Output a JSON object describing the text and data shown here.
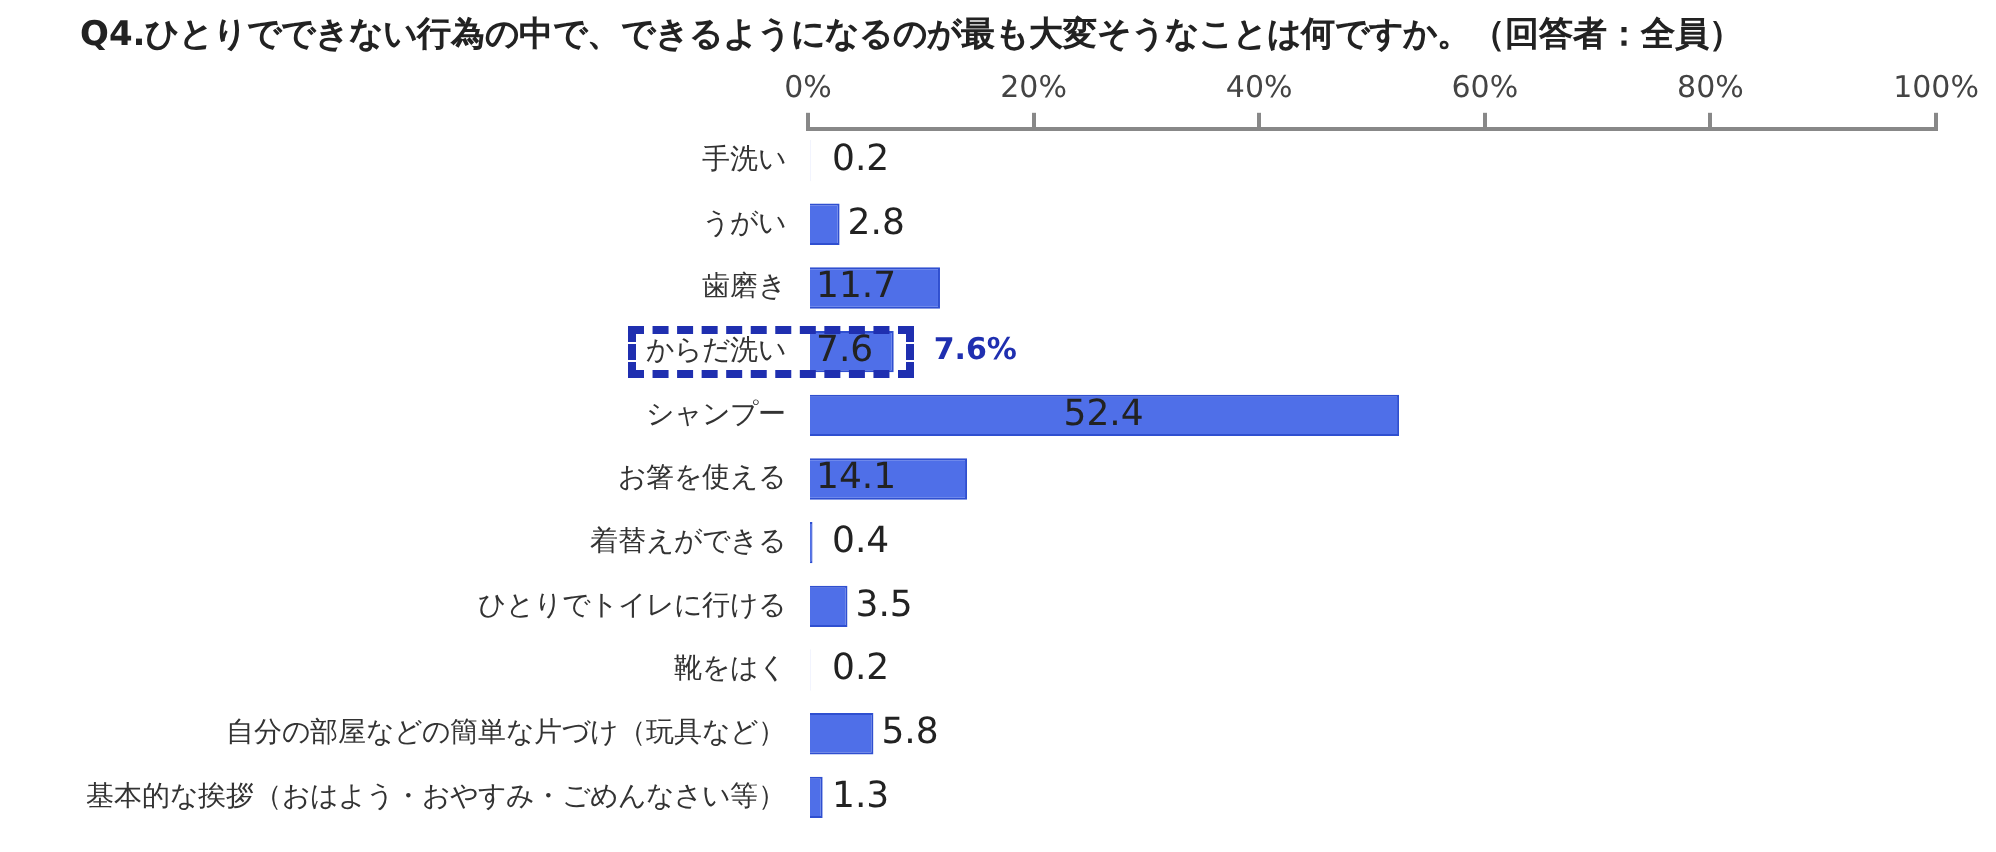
{
  "chart_data": {
    "type": "bar",
    "orientation": "horizontal",
    "title": "Q4.ひとりでできない行為の中で、できるようになるのが最も大変そうなことは何ですか。（回答者：全員）",
    "categories": [
      "手洗い",
      "うがい",
      "歯磨き",
      "からだ洗い",
      "シャンプー",
      "お箸を使える",
      "着替えができる",
      "ひとりでトイレに行ける",
      "靴をはく",
      "自分の部屋などの簡単な片づけ（玩具など）",
      "基本的な挨拶（おはよう・おやすみ・ごめんなさい等）"
    ],
    "values": [
      0.2,
      2.8,
      11.7,
      7.6,
      52.4,
      14.1,
      0.4,
      3.5,
      0.2,
      5.8,
      1.3
    ],
    "color": "#4f6fe8",
    "xlim": [
      0,
      100
    ],
    "xticks": [
      {
        "value": 0,
        "label": "0%"
      },
      {
        "value": 20,
        "label": "20%"
      },
      {
        "value": 40,
        "label": "40%"
      },
      {
        "value": 60,
        "label": "60%"
      },
      {
        "value": 80,
        "label": "80%"
      },
      {
        "value": 100,
        "label": "100%"
      }
    ],
    "data_labels": true,
    "grid": false,
    "legend": false,
    "annotations": [
      {
        "text": "7.6%",
        "x": 7.6,
        "y": "からだ洗い"
      }
    ]
  }
}
